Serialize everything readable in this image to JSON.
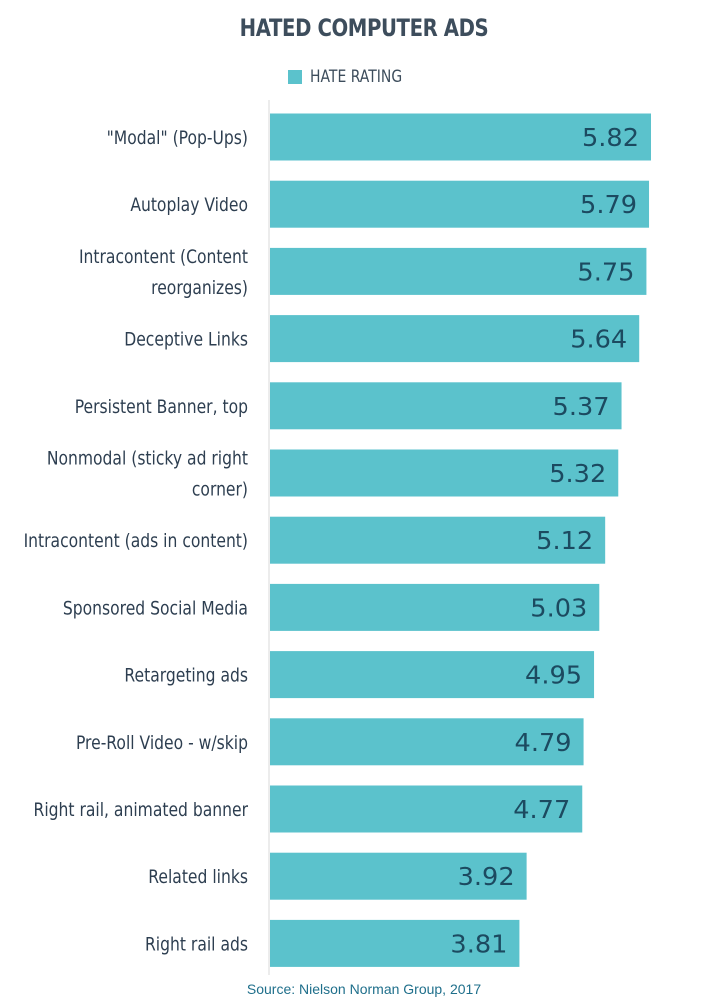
{
  "chart_data": {
    "type": "bar",
    "orientation": "horizontal",
    "title": "HATED COMPUTER ADS",
    "legend": "HATE RATING",
    "legend_position": "top",
    "categories": [
      "\"Modal\" (Pop-Ups)",
      "Autoplay Video",
      "Intracontent (Content reorganizes)",
      "Deceptive Links",
      "Persistent Banner, top",
      "Nonmodal  (sticky ad right corner)",
      "Intracontent  (ads in content)",
      "Sponsored Social Media",
      "Retargeting ads",
      "Pre-Roll Video - w/skip",
      "Right rail, animated banner",
      "Related links",
      "Right rail ads"
    ],
    "category_lines": [
      [
        "\"Modal\" (Pop-Ups)"
      ],
      [
        "Autoplay Video"
      ],
      [
        "Intracontent (Content",
        "reorganizes)"
      ],
      [
        "Deceptive Links"
      ],
      [
        "Persistent Banner, top"
      ],
      [
        "Nonmodal  (sticky ad right",
        "corner)"
      ],
      [
        "Intracontent  (ads in content)"
      ],
      [
        "Sponsored Social Media"
      ],
      [
        "Retargeting ads"
      ],
      [
        "Pre-Roll Video - w/skip"
      ],
      [
        "Right rail, animated banner"
      ],
      [
        "Related links"
      ],
      [
        "Right rail ads"
      ]
    ],
    "values": [
      5.82,
      5.79,
      5.75,
      5.64,
      5.37,
      5.32,
      5.12,
      5.03,
      4.95,
      4.79,
      4.77,
      3.92,
      3.81
    ],
    "value_labels": [
      "5.82",
      "5.79",
      "5.75",
      "5.64",
      "5.37",
      "5.32",
      "5.12",
      "5.03",
      "4.95",
      "4.79",
      "4.77",
      "3.92",
      "3.81"
    ],
    "xlim": [
      0,
      6
    ],
    "xlabel": "",
    "ylabel": "",
    "grid": false,
    "bar_color": "#5bc2cc"
  },
  "source": "Source: Nielson Norman Group, 2017"
}
